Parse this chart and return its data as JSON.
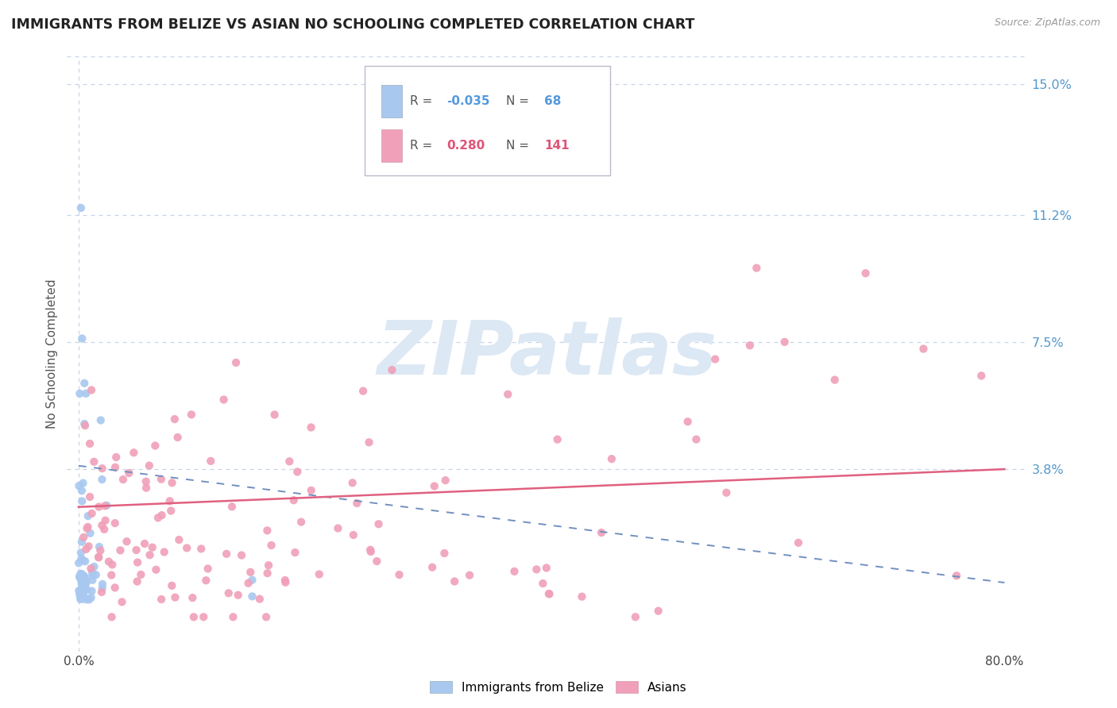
{
  "title": "IMMIGRANTS FROM BELIZE VS ASIAN NO SCHOOLING COMPLETED CORRELATION CHART",
  "source_text": "Source: ZipAtlas.com",
  "ylabel": "No Schooling Completed",
  "xlim": [
    -0.01,
    0.82
  ],
  "ylim": [
    -0.015,
    0.158
  ],
  "xtick_labels": [
    "0.0%",
    "80.0%"
  ],
  "xtick_positions": [
    0.0,
    0.8
  ],
  "ytick_labels": [
    "3.8%",
    "7.5%",
    "11.2%",
    "15.0%"
  ],
  "ytick_positions": [
    0.038,
    0.075,
    0.112,
    0.15
  ],
  "background_color": "#ffffff",
  "grid_color": "#c8d4e8",
  "series1_color": "#a8c8f0",
  "series2_color": "#f0a0b8",
  "series1_label": "Immigrants from Belize",
  "series2_label": "Asians",
  "series1_trend_color": "#7090c0",
  "series2_trend_color": "#e06080",
  "title_color": "#222222",
  "title_fontsize": 12.5,
  "legend_color1": "#a8c8f0",
  "legend_color2": "#f0a0b8",
  "legend_text_color1": "#5599dd",
  "legend_text_color2": "#dd5577",
  "watermark_color": "#dce8f4"
}
